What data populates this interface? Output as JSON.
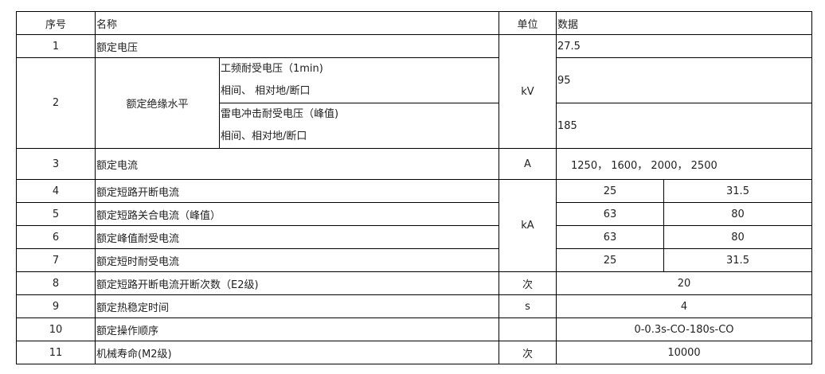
{
  "header": {
    "seq": "序号",
    "name": "名称",
    "unit": "单位",
    "data": "数据"
  },
  "rows": [
    {
      "seq": "1",
      "name": "额定电压",
      "unit": "kV",
      "value": "27.5"
    },
    {
      "seq": "2",
      "name": "额定绝缘水平",
      "sub": [
        {
          "line1": "工频耐受电压（1min)",
          "line2": "相间、 相对地/断口",
          "value": "95"
        },
        {
          "line1": "雷电冲击耐受电压（峰值)",
          "line2": "相间、相对地/断口",
          "value": "185"
        }
      ]
    },
    {
      "seq": "3",
      "name": "额定电流",
      "unit": "A",
      "value": "1250，  1600，  2000，  2500"
    },
    {
      "seq": "4",
      "name": "额定短路开断电流",
      "unit": "kA",
      "v1": "25",
      "v2": "31.5"
    },
    {
      "seq": "5",
      "name": "额定短路关合电流（峰值）",
      "v1": "63",
      "v2": "80"
    },
    {
      "seq": "6",
      "name": "额定峰值耐受电流",
      "v1": "63",
      "v2": "80"
    },
    {
      "seq": "7",
      "name": "额定短时耐受电流",
      "v1": "25",
      "v2": "31.5"
    },
    {
      "seq": "8",
      "name": "额定短路开断电流开断次数（E2级)",
      "unit": "次",
      "value": "20"
    },
    {
      "seq": "9",
      "name": "额定热稳定时间",
      "unit": "s",
      "value": "4"
    },
    {
      "seq": "10",
      "name": "额定操作顺序",
      "unit": "",
      "value": "0-0.3s-CO-180s-CO"
    },
    {
      "seq": "11",
      "name": "机械寿命(M2级)",
      "unit": "次",
      "value": "10000"
    }
  ]
}
